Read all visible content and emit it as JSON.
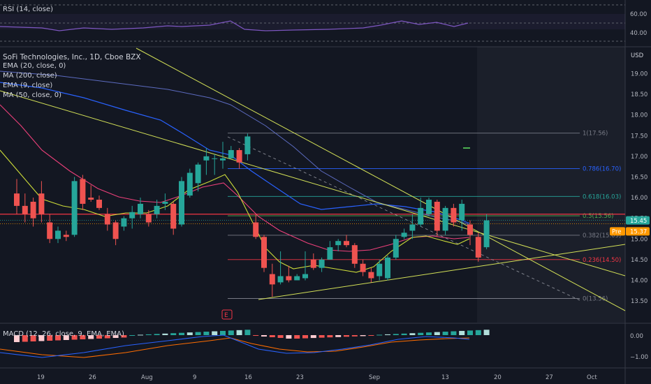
{
  "symbol_title": "SoFi Technologies, Inc., 1D, Cboe BZX",
  "currency": "USD",
  "indicators": [
    "EMA (20, close, 0)",
    "MA (200, close)",
    "EMA (9, close)",
    "MA (50, close, 0)"
  ],
  "rsi": {
    "label": "RSI (14, close)",
    "ticks": [
      "60.00",
      "40.00"
    ]
  },
  "macd": {
    "label": "MACD (12, 26, close, 9, EMA, EMA)",
    "ticks": [
      "0.00",
      "−1.00"
    ]
  },
  "earnings_marker": "E",
  "pre_label": "Pre",
  "price_tags": {
    "last": "15.45",
    "pre": "15.37"
  },
  "colors": {
    "up": "#26a69a",
    "down": "#ef5350",
    "ema20": "#ec407a",
    "ma200": "#5c6bc0",
    "ema9": "#cddc39",
    "ma50": "#2962ff",
    "trend": "#d4e157",
    "rsi": "#7e57c2"
  },
  "chart_data": {
    "type": "candlestick",
    "y_axis_ticks": [
      "19.00",
      "18.50",
      "18.00",
      "17.50",
      "17.00",
      "16.50",
      "16.00",
      "15.50",
      "15.00",
      "14.50",
      "14.00",
      "13.50"
    ],
    "x_axis_ticks": [
      "19",
      "26",
      "Aug",
      "9",
      "16",
      "23",
      "Sep",
      "13",
      "20",
      "27",
      "Oct"
    ],
    "ylim": [
      13.2,
      19.5
    ],
    "fib_levels": [
      {
        "label": "1(17.56)",
        "price": 17.56
      },
      {
        "label": "0.786(16.70)",
        "price": 16.7
      },
      {
        "label": "0.618(16.03)",
        "price": 16.03
      },
      {
        "label": "0.5(15.56)",
        "price": 15.56
      },
      {
        "label": "0.382(15.09)",
        "price": 15.09
      },
      {
        "label": "0.236(14.50)",
        "price": 14.5
      },
      {
        "label": "0(13.56)",
        "price": 13.56
      }
    ],
    "candles": [
      {
        "o": 16.1,
        "h": 16.45,
        "l": 15.6,
        "c": 15.8
      },
      {
        "o": 15.8,
        "h": 16.1,
        "l": 15.4,
        "c": 15.6
      },
      {
        "o": 15.9,
        "h": 16.0,
        "l": 15.3,
        "c": 15.5
      },
      {
        "o": 16.1,
        "h": 16.4,
        "l": 15.4,
        "c": 15.6
      },
      {
        "o": 15.4,
        "h": 15.6,
        "l": 14.9,
        "c": 15.0
      },
      {
        "o": 15.0,
        "h": 15.3,
        "l": 14.9,
        "c": 15.2
      },
      {
        "o": 15.1,
        "h": 15.2,
        "l": 14.95,
        "c": 15.05
      },
      {
        "o": 15.1,
        "h": 16.5,
        "l": 15.05,
        "c": 16.4
      },
      {
        "o": 16.45,
        "h": 16.55,
        "l": 15.7,
        "c": 15.85
      },
      {
        "o": 16.0,
        "h": 16.3,
        "l": 15.9,
        "c": 15.95
      },
      {
        "o": 15.95,
        "h": 16.05,
        "l": 15.7,
        "c": 15.75
      },
      {
        "o": 15.6,
        "h": 15.75,
        "l": 15.2,
        "c": 15.35
      },
      {
        "o": 15.4,
        "h": 15.45,
        "l": 14.85,
        "c": 15.0
      },
      {
        "o": 15.3,
        "h": 15.55,
        "l": 15.2,
        "c": 15.5
      },
      {
        "o": 15.5,
        "h": 15.8,
        "l": 15.25,
        "c": 15.65
      },
      {
        "o": 15.6,
        "h": 16.0,
        "l": 15.5,
        "c": 15.85
      },
      {
        "o": 15.6,
        "h": 15.7,
        "l": 15.3,
        "c": 15.4
      },
      {
        "o": 15.6,
        "h": 15.95,
        "l": 15.5,
        "c": 15.8
      },
      {
        "o": 15.85,
        "h": 16.1,
        "l": 15.7,
        "c": 15.9
      },
      {
        "o": 15.85,
        "h": 15.9,
        "l": 15.1,
        "c": 15.25
      },
      {
        "o": 15.35,
        "h": 16.5,
        "l": 15.3,
        "c": 16.4
      },
      {
        "o": 16.05,
        "h": 16.7,
        "l": 16.0,
        "c": 16.6
      },
      {
        "o": 16.35,
        "h": 16.85,
        "l": 16.15,
        "c": 16.8
      },
      {
        "o": 16.9,
        "h": 17.2,
        "l": 16.55,
        "c": 17.0
      },
      {
        "o": 16.95,
        "h": 17.05,
        "l": 16.55,
        "c": 16.95
      },
      {
        "o": 16.9,
        "h": 17.35,
        "l": 16.7,
        "c": 16.95
      },
      {
        "o": 16.95,
        "h": 17.25,
        "l": 16.95,
        "c": 17.15
      },
      {
        "o": 17.15,
        "h": 17.2,
        "l": 16.7,
        "c": 16.85
      },
      {
        "o": 17.05,
        "h": 17.55,
        "l": 16.9,
        "c": 17.48
      },
      {
        "o": 15.4,
        "h": 15.6,
        "l": 15.0,
        "c": 15.05
      },
      {
        "o": 15.05,
        "h": 15.1,
        "l": 14.2,
        "c": 14.3
      },
      {
        "o": 14.15,
        "h": 14.4,
        "l": 13.6,
        "c": 13.9
      },
      {
        "o": 13.95,
        "h": 14.7,
        "l": 13.9,
        "c": 14.1
      },
      {
        "o": 14.1,
        "h": 14.35,
        "l": 13.95,
        "c": 14.0
      },
      {
        "o": 14.0,
        "h": 14.15,
        "l": 14.0,
        "c": 14.1
      },
      {
        "o": 14.05,
        "h": 14.7,
        "l": 14.0,
        "c": 14.15
      },
      {
        "o": 14.5,
        "h": 14.65,
        "l": 14.25,
        "c": 14.3
      },
      {
        "o": 14.3,
        "h": 14.55,
        "l": 14.2,
        "c": 14.5
      },
      {
        "o": 14.5,
        "h": 14.95,
        "l": 14.5,
        "c": 14.8
      },
      {
        "o": 14.85,
        "h": 15.0,
        "l": 14.7,
        "c": 14.95
      },
      {
        "o": 14.95,
        "h": 15.1,
        "l": 14.8,
        "c": 14.85
      },
      {
        "o": 14.85,
        "h": 14.9,
        "l": 14.3,
        "c": 14.4
      },
      {
        "o": 14.4,
        "h": 14.5,
        "l": 14.1,
        "c": 14.2
      },
      {
        "o": 14.2,
        "h": 14.3,
        "l": 13.95,
        "c": 14.05
      },
      {
        "o": 14.1,
        "h": 14.5,
        "l": 14.0,
        "c": 14.4
      },
      {
        "o": 14.05,
        "h": 14.6,
        "l": 14.0,
        "c": 14.55
      },
      {
        "o": 14.55,
        "h": 15.1,
        "l": 14.5,
        "c": 15.0
      },
      {
        "o": 15.05,
        "h": 15.25,
        "l": 15.0,
        "c": 15.15
      },
      {
        "o": 15.2,
        "h": 15.6,
        "l": 15.0,
        "c": 15.35
      },
      {
        "o": 15.35,
        "h": 16.0,
        "l": 15.3,
        "c": 15.75
      },
      {
        "o": 15.6,
        "h": 16.0,
        "l": 15.55,
        "c": 15.95
      },
      {
        "o": 15.9,
        "h": 15.95,
        "l": 15.05,
        "c": 15.2
      },
      {
        "o": 15.2,
        "h": 15.8,
        "l": 15.1,
        "c": 15.75
      },
      {
        "o": 15.75,
        "h": 15.85,
        "l": 15.3,
        "c": 15.4
      },
      {
        "o": 15.45,
        "h": 15.95,
        "l": 15.2,
        "c": 15.85
      },
      {
        "o": 15.35,
        "h": 15.45,
        "l": 14.85,
        "c": 15.1
      },
      {
        "o": 15.05,
        "h": 15.15,
        "l": 14.45,
        "c": 14.55
      },
      {
        "o": 14.8,
        "h": 15.6,
        "l": 14.75,
        "c": 15.45
      }
    ]
  }
}
